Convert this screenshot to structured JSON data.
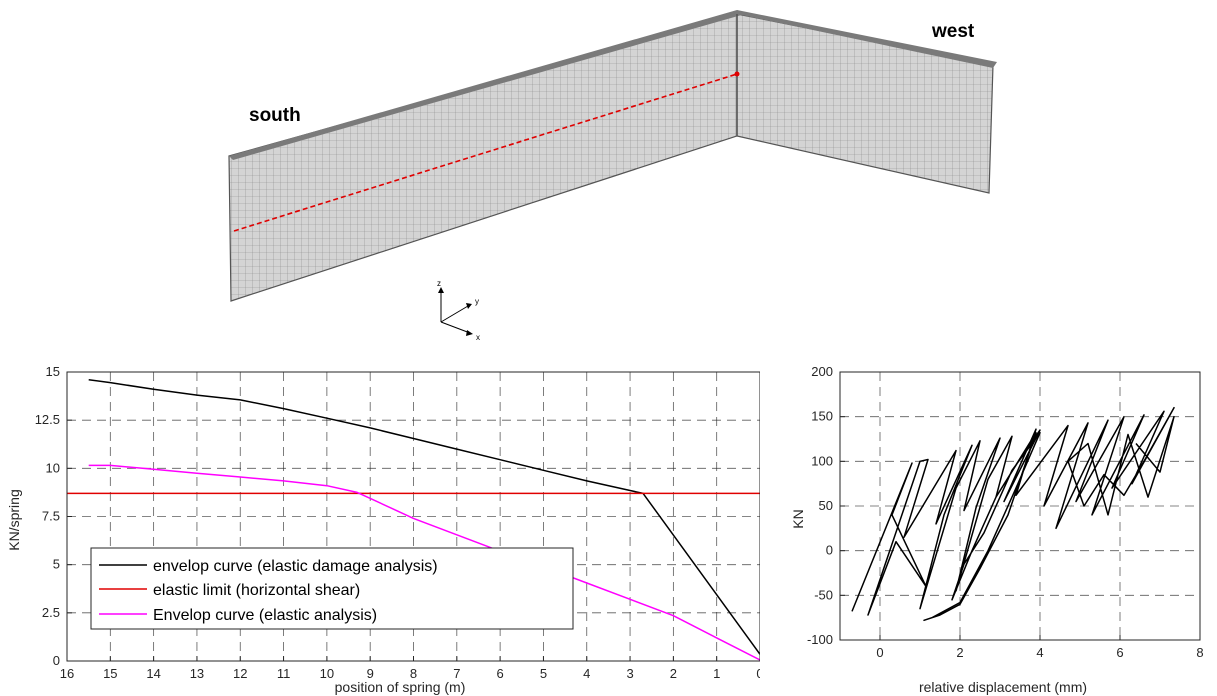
{
  "model": {
    "labels": {
      "south": "south",
      "west": "west"
    },
    "axes": {
      "z": "z",
      "y": "y",
      "x": "x"
    },
    "colors": {
      "mesh_fill": "#d4d4d4",
      "mesh_line": "#8a8a8a",
      "edge": "#555555",
      "section": "#e00000"
    }
  },
  "chart_data": [
    {
      "type": "line",
      "title": "",
      "xlabel": "position of spring (m)",
      "ylabel": "KN/spring",
      "xlim": [
        16,
        0
      ],
      "ylim": [
        0,
        15
      ],
      "x_reversed": true,
      "xticks": [
        16,
        15,
        14,
        13,
        12,
        11,
        10,
        9,
        8,
        7,
        6,
        5,
        4,
        3,
        2,
        1,
        0
      ],
      "yticks": [
        0,
        2.5,
        5,
        7.5,
        10,
        12.5,
        15
      ],
      "ytick_labels": [
        "0",
        "2.5",
        "5",
        "7.5",
        "10",
        "12.5",
        "15"
      ],
      "grid": true,
      "legend": "bottom-left",
      "series": [
        {
          "name": "envelop curve (elastic damage analysis)",
          "color": "#000000",
          "x": [
            15.5,
            15,
            14,
            13,
            12,
            11,
            10,
            9,
            8,
            7,
            6,
            5,
            4,
            3,
            2.7,
            0
          ],
          "y": [
            14.6,
            14.45,
            14.1,
            13.8,
            13.55,
            13.1,
            12.6,
            12.1,
            11.55,
            11.0,
            10.45,
            9.9,
            9.35,
            8.85,
            8.7,
            0.35
          ]
        },
        {
          "name": "elastic limit (horizontal shear)",
          "color": "#e00000",
          "x": [
            16,
            0
          ],
          "y": [
            8.7,
            8.7
          ]
        },
        {
          "name": "Envelop curve (elastic analysis)",
          "color": "#ff00ff",
          "x": [
            15.5,
            15,
            14,
            13,
            12,
            11,
            10,
            9.3,
            8,
            7,
            6,
            5,
            4,
            3,
            2,
            1,
            0
          ],
          "y": [
            10.15,
            10.15,
            9.95,
            9.75,
            9.55,
            9.35,
            9.1,
            8.75,
            7.4,
            6.55,
            5.7,
            4.9,
            4.05,
            3.2,
            2.35,
            1.2,
            0.05
          ]
        }
      ]
    },
    {
      "type": "line",
      "title": "",
      "xlabel": "relative displacement (mm)",
      "ylabel": "KN",
      "xlim": [
        -1,
        8
      ],
      "ylim": [
        -100,
        200
      ],
      "xticks": [
        0,
        2,
        4,
        6,
        8
      ],
      "yticks": [
        -100,
        -50,
        0,
        50,
        100,
        150,
        200
      ],
      "grid": true,
      "series": [
        {
          "name": "",
          "color": "#000000",
          "x": [
            -0.7,
            0.8,
            0.3,
            1.15,
            0.4,
            -0.3,
            1.0,
            1.2,
            0.6,
            1.9,
            1.4,
            2.3,
            1.6,
            1.0,
            1.9,
            2.5,
            2.1,
            3.0,
            2.4,
            1.9,
            2.7,
            3.3,
            2.9,
            3.9,
            3.2,
            2.5,
            2.0,
            1.5,
            1.1,
            1.3,
            2.0,
            2.7,
            3.4,
            4.0,
            3.3,
            2.6,
            2.1,
            1.8,
            2.3,
            2.9,
            3.6,
            4.0,
            3.1,
            3.9,
            3.4,
            4.7,
            4.1,
            5.2,
            4.4,
            5.7,
            4.9,
            6.1,
            5.3,
            6.6,
            5.8,
            7.1,
            6.3,
            7.35,
            6.6,
            6.1,
            5.6,
            5.1,
            4.7,
            5.2,
            5.7,
            6.2,
            6.7,
            7.35,
            7.0,
            6.4
          ],
          "y": [
            -68,
            98,
            40,
            -40,
            10,
            -72,
            100,
            102,
            15,
            112,
            30,
            118,
            40,
            -65,
            70,
            123,
            45,
            126,
            48,
            -45,
            80,
            128,
            60,
            132,
            40,
            -20,
            -60,
            -72,
            -78,
            -75,
            -58,
            0,
            70,
            132,
            90,
            20,
            -15,
            -55,
            0,
            60,
            110,
            135,
            55,
            136,
            62,
            140,
            50,
            143,
            25,
            146,
            55,
            150,
            40,
            152,
            70,
            156,
            75,
            160,
            100,
            62,
            85,
            50,
            100,
            120,
            40,
            130,
            60,
            150,
            88,
            120
          ]
        }
      ]
    }
  ]
}
